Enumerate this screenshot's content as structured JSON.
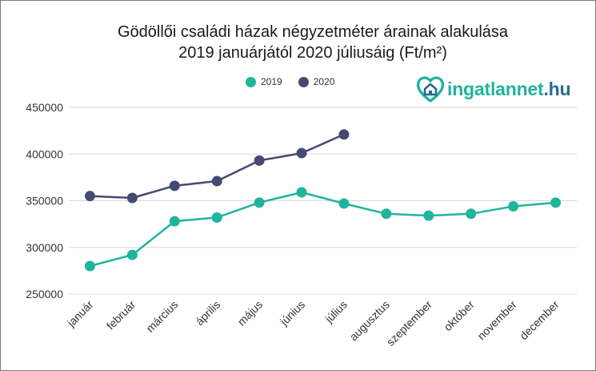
{
  "colors": {
    "series_2019": "#1fb49e",
    "series_2020": "#454a73",
    "grid": "#d9d9d9",
    "axis_text": "#333333",
    "logo_primary": "#1fb49e",
    "logo_secondary": "#2a6a8f"
  },
  "logo": {
    "icon": "house-heart-icon",
    "text_main": "ingatlannet",
    "text_suffix": ".hu"
  },
  "chart_data": {
    "type": "line",
    "title_line1": "Gödöllői családi házak négyzetméter árainak alakulása",
    "title_line2": "2019 januárjától 2020 júliusáig (Ft/m²)",
    "xlabel": "",
    "ylabel": "",
    "categories": [
      "január",
      "február",
      "március",
      "április",
      "május",
      "június",
      "július",
      "augusztus",
      "szeptember",
      "október",
      "november",
      "december"
    ],
    "series": [
      {
        "name": "2019",
        "values": [
          280000,
          292000,
          328000,
          332000,
          348000,
          359000,
          347000,
          336000,
          334000,
          336000,
          344000,
          348000
        ]
      },
      {
        "name": "2020",
        "values": [
          355000,
          353000,
          366000,
          371000,
          393000,
          401000,
          421000,
          null,
          null,
          null,
          null,
          null
        ]
      }
    ],
    "ylim": [
      250000,
      450000
    ],
    "yticks": [
      250000,
      300000,
      350000,
      400000,
      450000
    ],
    "ytick_labels": [
      "250000",
      "300000",
      "350000",
      "400000",
      "450000"
    ],
    "grid": true,
    "legend_position": "top-center"
  }
}
